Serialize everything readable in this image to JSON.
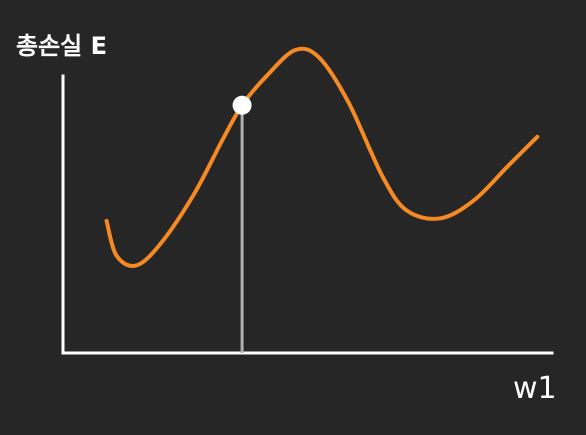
{
  "chart_data": {
    "type": "line",
    "ylabel": "총손실 E",
    "xlabel": "w1",
    "xlim": [
      0,
      10
    ],
    "ylim": [
      0,
      10
    ],
    "grid": false,
    "series": [
      {
        "color": "#f58a25",
        "points": [
          [
            0.9,
            3.5
          ],
          [
            1.1,
            2.2
          ],
          [
            1.5,
            1.8
          ],
          [
            2.0,
            2.6
          ],
          [
            2.7,
            4.5
          ],
          [
            3.3,
            6.6
          ],
          [
            3.7,
            7.9
          ],
          [
            4.2,
            9.0
          ],
          [
            4.8,
            10.0
          ],
          [
            5.3,
            9.7
          ],
          [
            5.9,
            8.0
          ],
          [
            6.6,
            5.2
          ],
          [
            7.1,
            3.9
          ],
          [
            7.8,
            3.6
          ],
          [
            8.5,
            4.3
          ],
          [
            9.2,
            5.6
          ],
          [
            9.8,
            6.7
          ]
        ]
      }
    ],
    "marker": {
      "x": 3.7,
      "y": 7.9,
      "color": "#ffffff"
    },
    "marker_line_color": "#b0b0b0",
    "axis_color": "#ffffff",
    "background": "#262626"
  }
}
